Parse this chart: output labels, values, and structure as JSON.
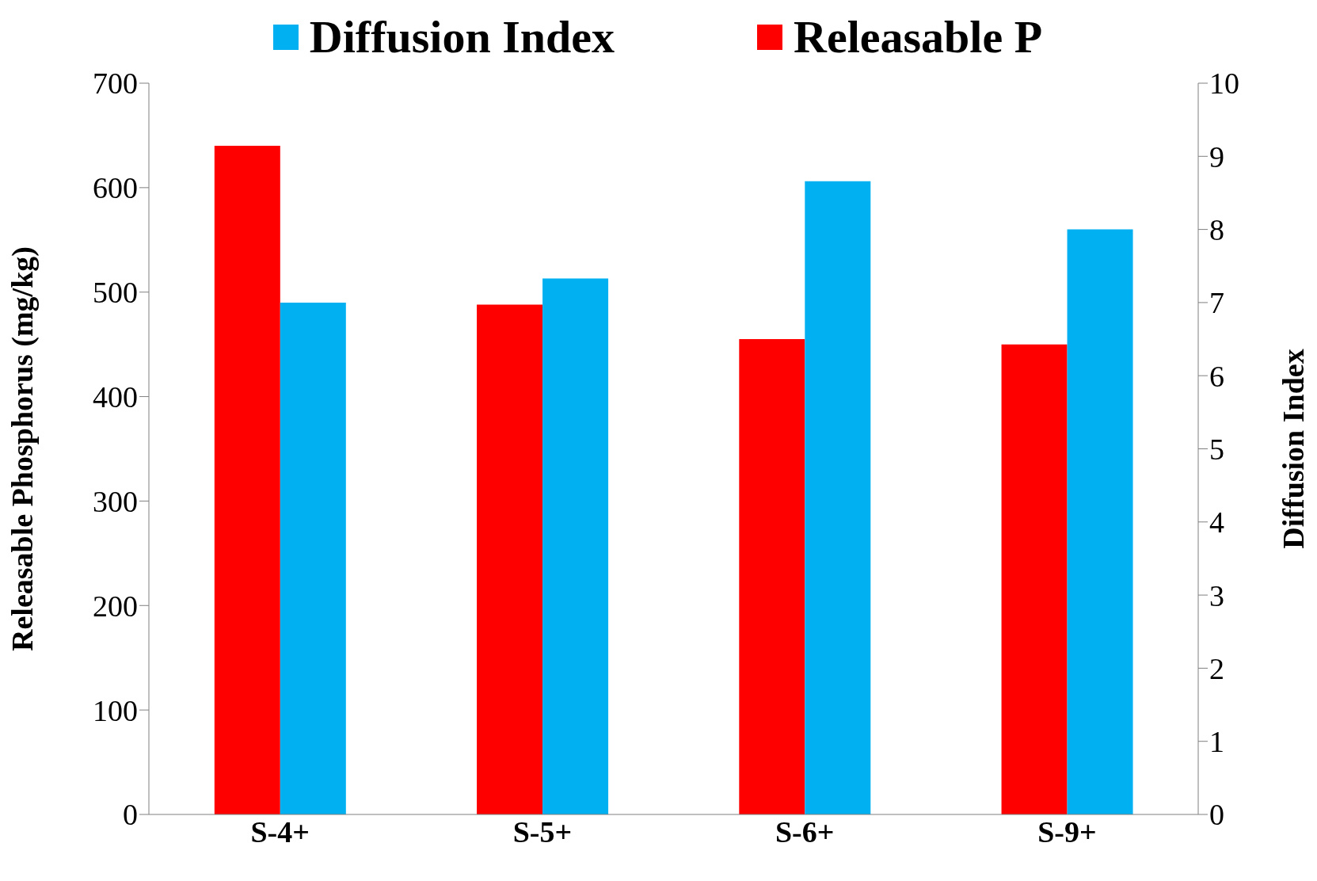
{
  "chart_data": {
    "type": "bar",
    "ylabel": "Releasable Phosphorus (mg/kg)",
    "y2label": "Diffusion Index",
    "categories": [
      "S-4+",
      "S-5+",
      "S-6+",
      "S-9+"
    ],
    "series": [
      {
        "name": "Releasable P",
        "color": "#ff0000",
        "values": [
          640,
          488,
          455,
          450
        ]
      },
      {
        "name": "Diffusion Index",
        "color": "#00b0f0",
        "values": [
          7.0,
          7.33,
          8.66,
          8.0
        ],
        "axis": "y2"
      }
    ],
    "ylim": [
      0,
      700
    ],
    "yticks": [
      0,
      100,
      200,
      300,
      400,
      500,
      600,
      700
    ],
    "y2lim": [
      0,
      10
    ],
    "y2ticks": [
      0,
      1,
      2,
      3,
      4,
      5,
      6,
      7,
      8,
      9,
      10
    ],
    "legend": "top",
    "grid": false
  }
}
